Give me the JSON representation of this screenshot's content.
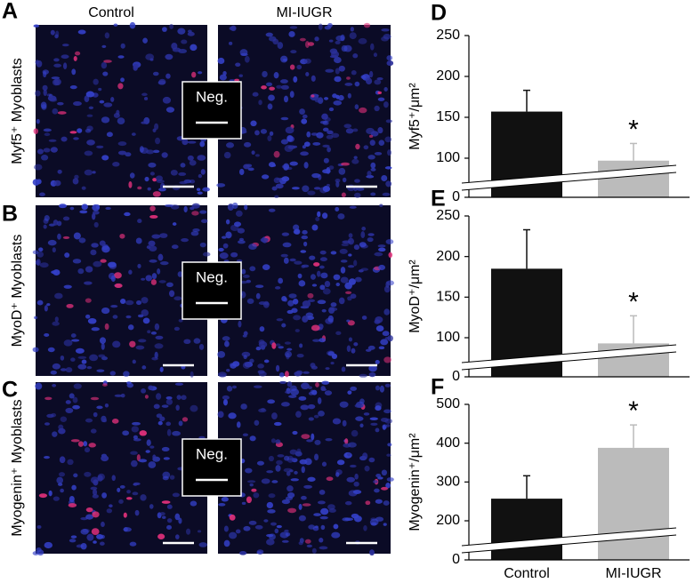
{
  "figure": {
    "columns": [
      "Control",
      "MI-IUGR"
    ],
    "panels": [
      {
        "letter": "A",
        "row_label": "Myf5⁺ Myoblasts",
        "inset": "Neg."
      },
      {
        "letter": "B",
        "row_label": "MyoD⁺ Myoblasts",
        "inset": "Neg."
      },
      {
        "letter": "C",
        "row_label": "Myogenin⁺ Myoblasts",
        "inset": "Neg."
      }
    ]
  },
  "chart_data": [
    {
      "type": "bar",
      "label": "D",
      "y_label": "Myf5⁺/μm²",
      "values": [
        157,
        97
      ],
      "errors": [
        26,
        21
      ],
      "colors": [
        "#111111",
        "#bbbbbb"
      ],
      "ylim": [
        0,
        250
      ],
      "ybreak": [
        0,
        100
      ],
      "yticks": [
        0,
        100,
        150,
        200,
        250
      ],
      "annotation": "*"
    },
    {
      "type": "bar",
      "label": "E",
      "y_label": "MyoD⁺/μm²",
      "values": [
        185,
        93
      ],
      "errors": [
        48,
        34
      ],
      "colors": [
        "#111111",
        "#bbbbbb"
      ],
      "ylim": [
        0,
        250
      ],
      "ybreak": [
        0,
        100
      ],
      "yticks": [
        0,
        100,
        150,
        200,
        250
      ],
      "annotation": "*"
    },
    {
      "type": "bar",
      "label": "F",
      "y_label": "Myogenin⁺/μm²",
      "categories": [
        "Control",
        "MI-IUGR"
      ],
      "values": [
        257,
        388
      ],
      "errors": [
        59,
        59
      ],
      "colors": [
        "#111111",
        "#bbbbbb"
      ],
      "ylim": [
        0,
        500
      ],
      "ybreak": [
        0,
        200
      ],
      "yticks": [
        0,
        200,
        300,
        400,
        500
      ],
      "annotation": "*"
    }
  ]
}
